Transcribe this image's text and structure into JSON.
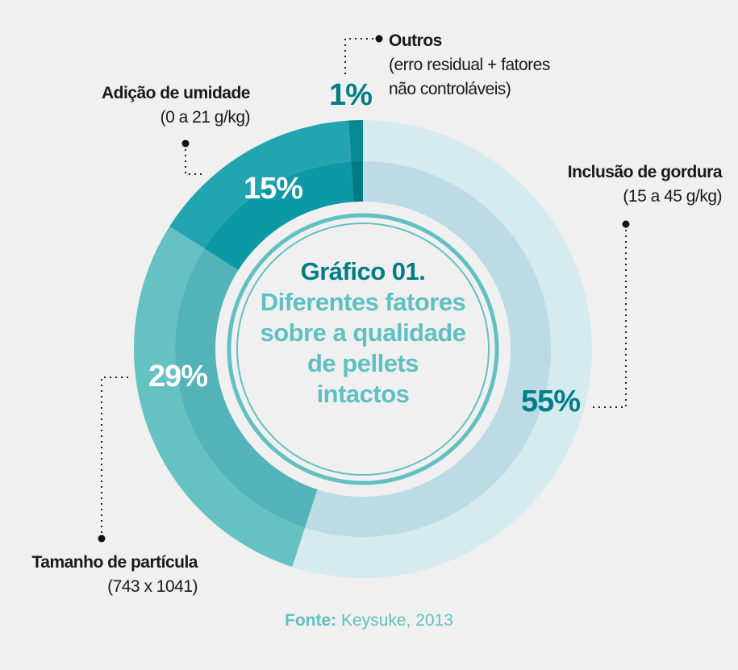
{
  "chart_data": {
    "type": "pie",
    "title": "Gráfico 01.",
    "subtitle": "Diferentes fatores sobre a qualidade de pellets intactos",
    "source_label": "Fonte:",
    "source_value": "Keysuke, 2013",
    "slices": [
      {
        "name": "Inclusão de gordura",
        "detail": "(15 a 45 g/kg)",
        "value": 55,
        "label": "55%",
        "outer_color": "#d5ebef",
        "inner_color": "#bddbe4",
        "text_color": "#007d87"
      },
      {
        "name": "Tamanho de partícula",
        "detail": "(743 x 1041)",
        "value": 29,
        "label": "29%",
        "outer_color": "#66c1c3",
        "inner_color": "#52b3b8",
        "text_color": "#ffffff"
      },
      {
        "name": "Adição de umidade",
        "detail": "(0 a 21 g/kg)",
        "value": 15,
        "label": "15%",
        "outer_color": "#22a5b0",
        "inner_color": "#0d98a5",
        "text_color": "#ffffff"
      },
      {
        "name": "Outros",
        "detail": "(erro residual + fatores não controláveis)",
        "value": 1,
        "label": "1%",
        "outer_color": "#078893",
        "inner_color": "#007b86",
        "text_color": "#007d87"
      }
    ]
  }
}
